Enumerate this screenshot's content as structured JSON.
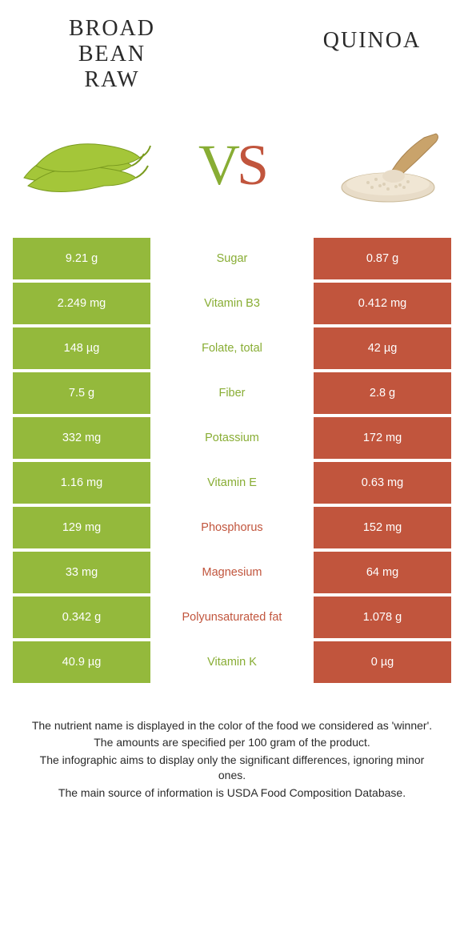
{
  "colors": {
    "left": "#94b93c",
    "right": "#c1553d",
    "left_text": "#88ad34",
    "right_text": "#c1553d",
    "row_gap": "#ffffff"
  },
  "header": {
    "left_title_line1": "BROAD BEAN",
    "left_title_line2": "RAW",
    "right_title": "QUINOA",
    "vs_v": "V",
    "vs_s": "S"
  },
  "rows": [
    {
      "left": "9.21 g",
      "label": "Sugar",
      "right": "0.87 g",
      "winner": "left"
    },
    {
      "left": "2.249 mg",
      "label": "Vitamin B3",
      "right": "0.412 mg",
      "winner": "left"
    },
    {
      "left": "148 µg",
      "label": "Folate, total",
      "right": "42 µg",
      "winner": "left"
    },
    {
      "left": "7.5 g",
      "label": "Fiber",
      "right": "2.8 g",
      "winner": "left"
    },
    {
      "left": "332 mg",
      "label": "Potassium",
      "right": "172 mg",
      "winner": "left"
    },
    {
      "left": "1.16 mg",
      "label": "Vitamin E",
      "right": "0.63 mg",
      "winner": "left"
    },
    {
      "left": "129 mg",
      "label": "Phosphorus",
      "right": "152 mg",
      "winner": "right"
    },
    {
      "left": "33 mg",
      "label": "Magnesium",
      "right": "64 mg",
      "winner": "right"
    },
    {
      "left": "0.342 g",
      "label": "Polyunsaturated fat",
      "right": "1.078 g",
      "winner": "right"
    },
    {
      "left": "40.9 µg",
      "label": "Vitamin K",
      "right": "0 µg",
      "winner": "left"
    }
  ],
  "footer": {
    "line1": "The nutrient name is displayed in the color of the food we considered as 'winner'.",
    "line2": "The amounts are specified per 100 gram of the product.",
    "line3": "The infographic aims to display only the significant differences, ignoring minor ones.",
    "line4": "The main source of information is USDA Food Composition Database."
  }
}
